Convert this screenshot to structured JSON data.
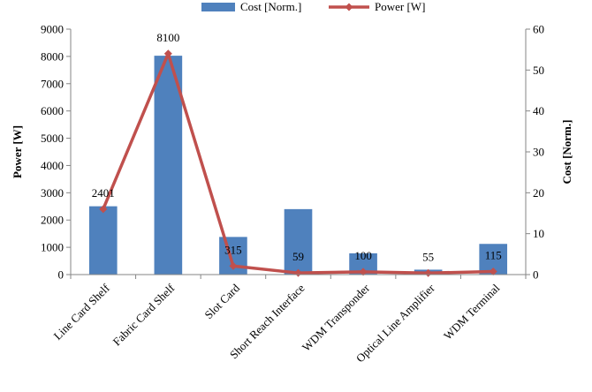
{
  "chart_data": {
    "type": "bar",
    "categories": [
      "Line Card Shelf",
      "Fabric Card Shelf",
      "Slot Card",
      "Short Reach Interface",
      "WDM Transponder",
      "Optical Line Amplifier",
      "WDM Terminal"
    ],
    "series": [
      {
        "name": "Cost [Norm.]",
        "type": "bar",
        "axis": "right",
        "values": [
          16.7,
          53.5,
          9.2,
          16.0,
          5.2,
          1.2,
          7.5
        ],
        "color": "#4F81BD"
      },
      {
        "name": "Power [W]",
        "type": "line",
        "axis": "left",
        "values": [
          2401,
          8100,
          315,
          59,
          100,
          55,
          115
        ],
        "color": "#C0504D"
      }
    ],
    "data_labels": [
      "2401",
      "8100",
      "315",
      "59",
      "100",
      "55",
      "115"
    ],
    "ylabel": "Power [W]",
    "y2label": "Cost [Norm.]",
    "ylim": [
      0,
      9000
    ],
    "y2lim": [
      0,
      60
    ],
    "yticks": [
      0,
      1000,
      2000,
      3000,
      4000,
      5000,
      6000,
      7000,
      8000,
      9000
    ],
    "y2ticks": [
      0,
      10,
      20,
      30,
      40,
      50,
      60
    ],
    "grid": false,
    "legend_position": "top"
  }
}
